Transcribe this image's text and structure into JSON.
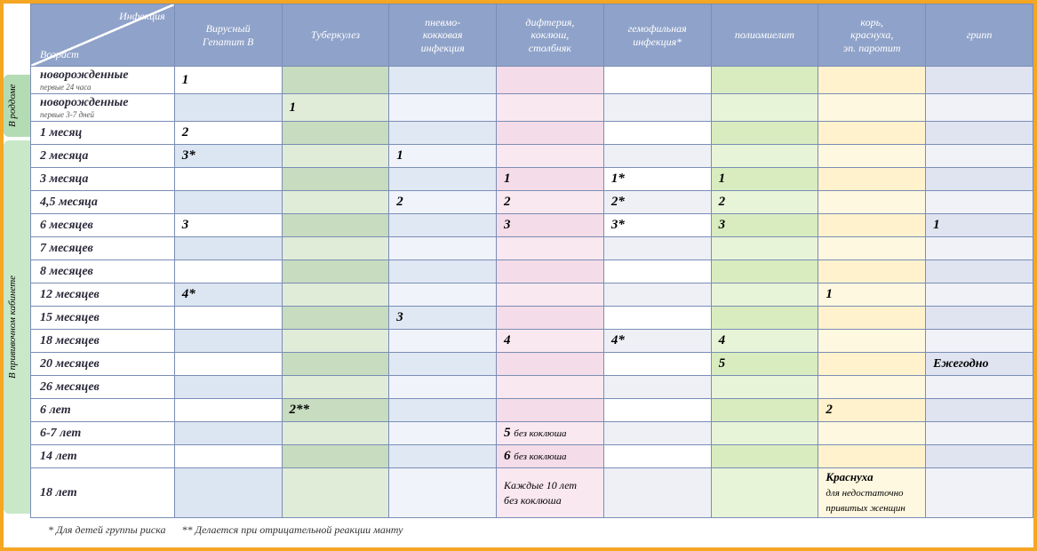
{
  "side_tabs": {
    "hospital": "В роддоме",
    "clinic": "В прививочном кабинете"
  },
  "corner": {
    "top": "Инфекция",
    "bottom": "Возраст"
  },
  "columns": [
    {
      "key": "hepb",
      "label": "Вирусный\nГепатит В",
      "colors": [
        "#ffffff",
        "#dce6f2"
      ]
    },
    {
      "key": "tb",
      "label": "Туберкулез",
      "colors": [
        "#c8dcc0",
        "#e0ecd8"
      ]
    },
    {
      "key": "pneumo",
      "label": "пневмо-\nкокковая\nинфекция",
      "colors": [
        "#e0e8f4",
        "#f0f4fa"
      ]
    },
    {
      "key": "dtp",
      "label": "дифтерия,\nкоклюш,\nстолбняк",
      "colors": [
        "#f4dce8",
        "#fae8f0"
      ]
    },
    {
      "key": "hib",
      "label": "гемофильная\nинфекция*",
      "colors": [
        "#ffffff",
        "#eef0f6"
      ]
    },
    {
      "key": "polio",
      "label": "полиомиелит",
      "colors": [
        "#d8ecc0",
        "#e8f4d8"
      ]
    },
    {
      "key": "mmr",
      "label": "корь,\nкраснуха,\nэп. паротит",
      "colors": [
        "#fff2cc",
        "#fff8e0"
      ]
    },
    {
      "key": "flu",
      "label": "грипп",
      "colors": [
        "#e0e4f0",
        "#f0f2f8"
      ]
    }
  ],
  "rows": [
    {
      "age": "новорожденные",
      "sub": "первые 24 часа",
      "hepb": "1"
    },
    {
      "age": "новорожденные",
      "sub": "первые 3-7 дней",
      "tb": "1"
    },
    {
      "age": "1 месяц",
      "hepb": "2"
    },
    {
      "age": "2 месяца",
      "hepb": "3*",
      "pneumo": "1"
    },
    {
      "age": "3 месяца",
      "dtp": "1",
      "hib": "1*",
      "polio": "1"
    },
    {
      "age": "4,5 месяца",
      "pneumo": "2",
      "dtp": "2",
      "hib": "2*",
      "polio": "2"
    },
    {
      "age": "6 месяцев",
      "hepb": "3",
      "dtp": "3",
      "hib": "3*",
      "polio": "3",
      "flu": "1"
    },
    {
      "age": "7 месяцев"
    },
    {
      "age": "8 месяцев"
    },
    {
      "age": "12 месяцев",
      "hepb": "4*",
      "mmr": "1"
    },
    {
      "age": "15 месяцев",
      "pneumo": "3"
    },
    {
      "age": "18 месяцев",
      "dtp": "4",
      "hib": "4*",
      "polio": "4"
    },
    {
      "age": "20 месяцев",
      "polio": "5",
      "flu": "Ежегодно"
    },
    {
      "age": "26 месяцев"
    },
    {
      "age": "6 лет",
      "tb": "2**",
      "mmr": "2"
    },
    {
      "age": "6-7 лет",
      "dtp": "5 ",
      "dtp_note": "без коклюша"
    },
    {
      "age": "14 лет",
      "dtp": "6 ",
      "dtp_note": "без коклюша"
    },
    {
      "age": "18 лет",
      "dtp": "Каждые 10 лет",
      "dtp_note": "без коклюша",
      "mmr": "Краснуха",
      "mmr_note": "для недостаточно привитых женщин",
      "tall": true
    }
  ],
  "footnotes": {
    "a": "* Для детей группы риска",
    "b": "** Делается при отрицательной реакции манту"
  }
}
